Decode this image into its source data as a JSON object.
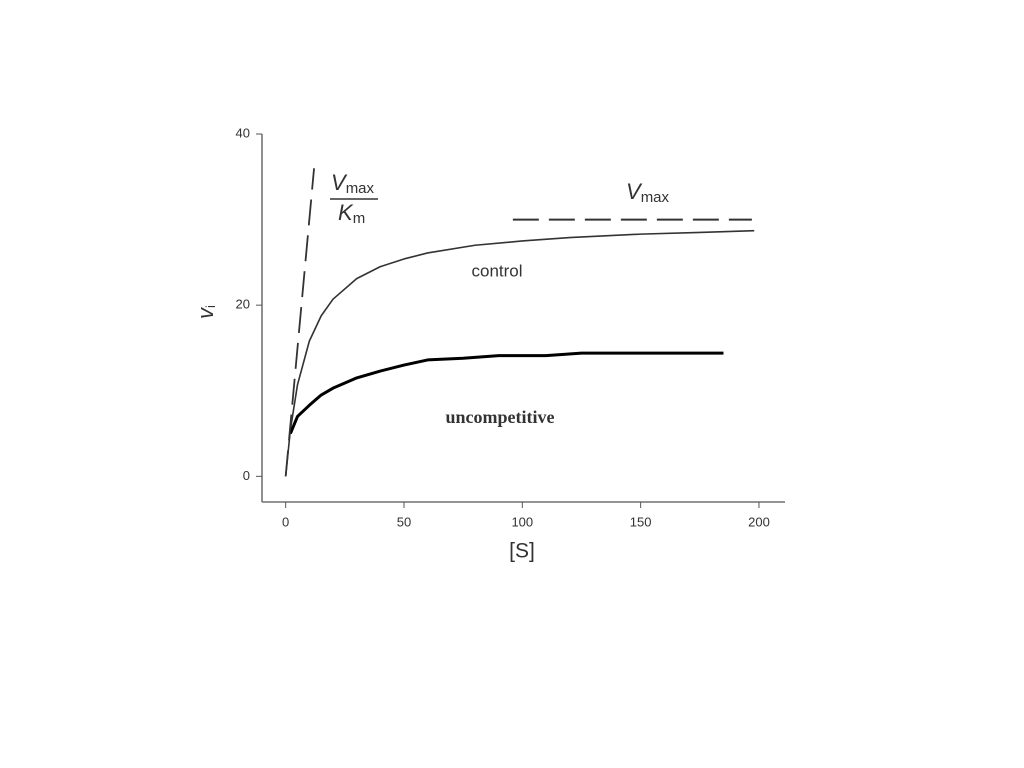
{
  "chart_data": {
    "type": "line",
    "x_label": "[S]",
    "y_label": {
      "base": "v",
      "sub": "i"
    },
    "xlim": [
      -10,
      211
    ],
    "ylim": [
      -3,
      40
    ],
    "xticks": [
      0,
      50,
      100,
      150,
      200
    ],
    "yticks": [
      0,
      20,
      40
    ],
    "grid": false,
    "series": [
      {
        "name": "control",
        "color": "#333333",
        "width": 1.6,
        "dash": false,
        "x": [
          0,
          2,
          5,
          10,
          15,
          20,
          30,
          40,
          50,
          60,
          80,
          100,
          120,
          150,
          175,
          198
        ],
        "values": [
          0,
          5.45,
          10.7,
          15.8,
          18.75,
          20.7,
          23.1,
          24.5,
          25.4,
          26.1,
          27.0,
          27.5,
          27.9,
          28.3,
          28.5,
          28.7
        ]
      },
      {
        "name": "uncompetitive",
        "color": "#000000",
        "width": 3,
        "dash": false,
        "x": [
          2,
          5,
          10,
          15,
          20,
          30,
          40,
          50,
          60,
          75,
          90,
          110,
          125,
          150,
          185
        ],
        "values": [
          5,
          7,
          8.3,
          9.5,
          10.3,
          11.5,
          12.3,
          13,
          13.6,
          13.8,
          14.1,
          14.1,
          14.4,
          14.4,
          14.4
        ]
      },
      {
        "color": "#333333",
        "width": 1.8,
        "dash": true,
        "x": [
          0,
          12
        ],
        "values": [
          0,
          36
        ]
      },
      {
        "color": "#333333",
        "width": 2,
        "dash": true,
        "x": [
          96,
          197
        ],
        "values": [
          30,
          30
        ]
      }
    ],
    "annotations": {
      "slope": {
        "numerator": {
          "base": "V",
          "sub": "max"
        },
        "denominator": {
          "base": "K",
          "sub": "m"
        }
      },
      "asymptote": {
        "base": "V",
        "sub": "max"
      }
    }
  }
}
